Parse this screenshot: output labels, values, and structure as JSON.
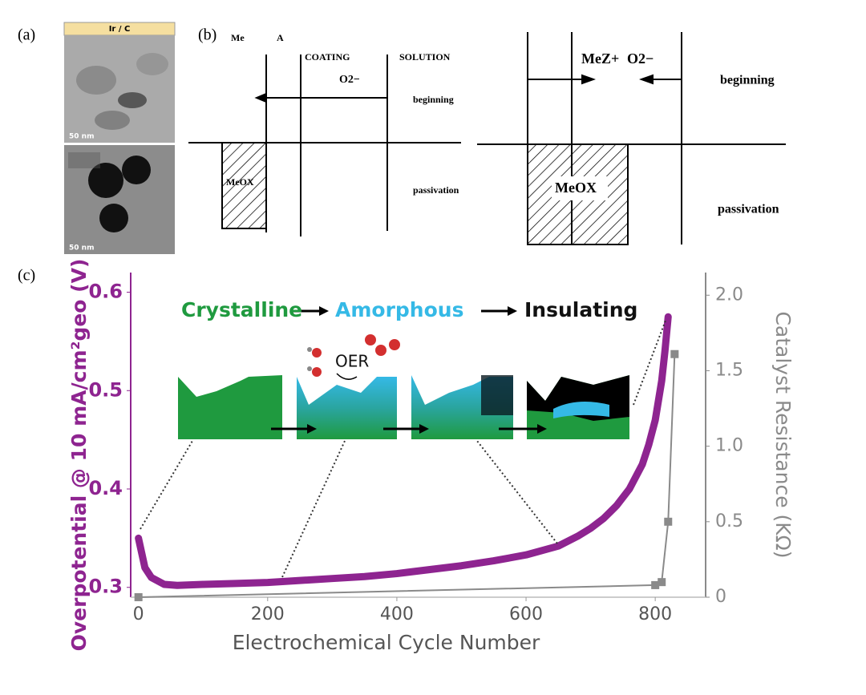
{
  "panel_labels": [
    "(a)",
    "(b)",
    "(c)"
  ],
  "panel_a": {
    "header": "Ir / C",
    "scale_bars": [
      "50 nm",
      "50 nm"
    ]
  },
  "panel_b": {
    "left": {
      "me": "Me",
      "a": "A",
      "coating": "COATING",
      "solution": "SOLUTION",
      "ion": "O2−",
      "beginning": "beginning",
      "oxide": "MeOX",
      "passivation": "passivation"
    },
    "right": {
      "cation": "MeZ+",
      "ion": "O2−",
      "beginning": "beginning",
      "oxide": "MeOX",
      "passivation": "passivation"
    }
  },
  "chart_data": {
    "type": "line",
    "xlabel": "Electrochemical Cycle Number",
    "ylabel": "Overpotential @ 10 mA/cm²geo (V)",
    "y2label": "Catalyst Resistance (KΩ)",
    "annotations": [
      "Crystalline",
      "Amorphous",
      "Insulating",
      "OER"
    ],
    "xlim": [
      -12,
      878
    ],
    "xticks": [
      0,
      200,
      400,
      600,
      800
    ],
    "ylim": [
      0.29,
      0.62
    ],
    "yticks": [
      0.3,
      0.4,
      0.5,
      0.6
    ],
    "y2lim": [
      0,
      2.15
    ],
    "y2ticks": [
      0,
      0.5,
      {
        "value": 1,
        "label": "1.0"
      },
      1.5,
      {
        "value": 2,
        "label": "2.0"
      }
    ],
    "series": [
      {
        "color": "#8e2490",
        "x": [
          0,
          5,
          10,
          20,
          40,
          60,
          100,
          150,
          200,
          250,
          300,
          350,
          400,
          450,
          500,
          550,
          600,
          650,
          680,
          700,
          720,
          740,
          760,
          780,
          790,
          800,
          810,
          815,
          820
        ],
        "values": [
          0.35,
          0.335,
          0.32,
          0.31,
          0.303,
          0.302,
          0.303,
          0.304,
          0.305,
          0.307,
          0.309,
          0.311,
          0.314,
          0.318,
          0.322,
          0.327,
          0.333,
          0.342,
          0.352,
          0.36,
          0.37,
          0.383,
          0.4,
          0.425,
          0.445,
          0.47,
          0.51,
          0.54,
          0.575
        ]
      },
      {
        "color": "#8a8a8a",
        "axis": "y2",
        "x": [
          0,
          800,
          810,
          820,
          830
        ],
        "values": [
          0,
          0.08,
          0.1,
          0.5,
          1.61
        ]
      }
    ]
  }
}
